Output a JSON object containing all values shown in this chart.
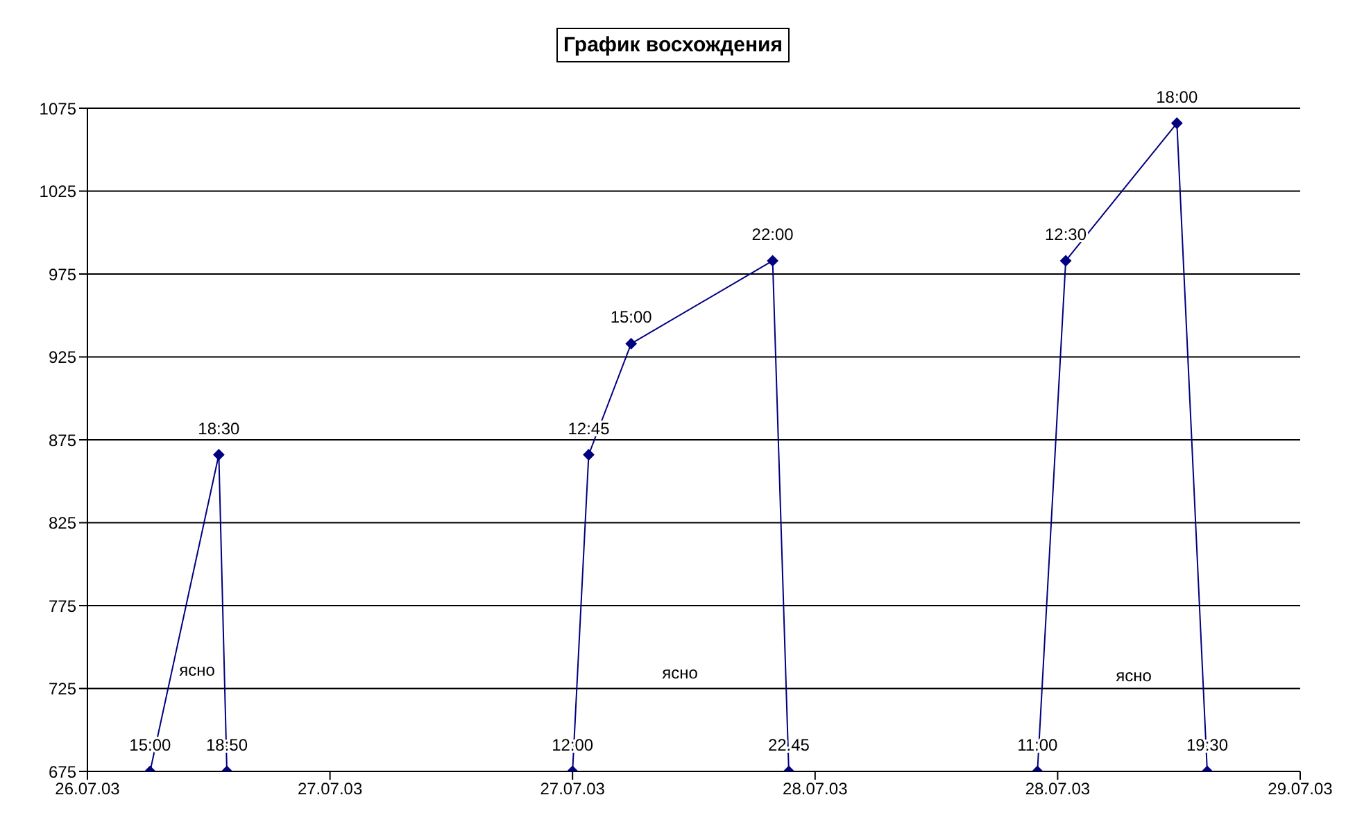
{
  "chart_data": {
    "type": "line",
    "title": "График восхождения",
    "x": [
      "--07-26T03:06",
      "--07-26T06:30",
      "--07-26T06:54",
      "--07-27T00:00",
      "--07-27T00:48",
      "--07-27T02:54",
      "--07-27T09:54",
      "--07-27T10:42",
      "--07-27T23:00",
      "--07-28T00:24",
      "--07-28T05:54",
      "--07-28T07:24"
    ],
    "series": [
      {
        "color": "#000080",
        "values": [
          675,
          866,
          675,
          675,
          866,
          933,
          983,
          675,
          675,
          983,
          1066,
          675
        ]
      }
    ],
    "xlim": [
      "--07-26T00:00",
      "--07-28T12:00"
    ],
    "xticks": [
      {
        "value": "--07-26T00:00",
        "label": "26.07.03"
      },
      {
        "value": "--07-26T12:00",
        "label": "27.07.03"
      },
      {
        "value": "--07-27T00:00",
        "label": "27.07.03"
      },
      {
        "value": "--07-27T12:00",
        "label": "28.07.03"
      },
      {
        "value": "--07-28T00:00",
        "label": "28.07.03"
      },
      {
        "value": "--07-28T12:00",
        "label": "29.07.03"
      }
    ],
    "ylim": [
      675,
      1075
    ],
    "yticks": [
      675,
      725,
      775,
      825,
      875,
      925,
      975,
      1025,
      1075
    ],
    "grid": "y",
    "marker": "diamond",
    "line_style": "solid",
    "annotations": [
      {
        "text": "15:00",
        "x": "--07-26T03:06",
        "y": 675
      },
      {
        "text": "18:30",
        "x": "--07-26T06:30",
        "y": 866
      },
      {
        "text": "18:50",
        "x": "--07-26T06:54",
        "y": 675
      },
      {
        "text": "12:00",
        "x": "--07-27T00:00",
        "y": 675
      },
      {
        "text": "12:45",
        "x": "--07-27T00:48",
        "y": 866
      },
      {
        "text": "15:00",
        "x": "--07-27T02:54",
        "y": 933
      },
      {
        "text": "22:00",
        "x": "--07-27T09:54",
        "y": 983
      },
      {
        "text": "22.45",
        "x": "--07-27T10:42",
        "y": 675
      },
      {
        "text": "11:00",
        "x": "--07-27T23:00",
        "y": 675
      },
      {
        "text": "12:30",
        "x": "--07-28T00:24",
        "y": 983
      },
      {
        "text": "18:00",
        "x": "--07-28T05:54",
        "y": 1066
      },
      {
        "text": "19:30",
        "x": "--07-28T07:24",
        "y": 675
      },
      "ясно",
      "ясно",
      "ясно"
    ]
  }
}
